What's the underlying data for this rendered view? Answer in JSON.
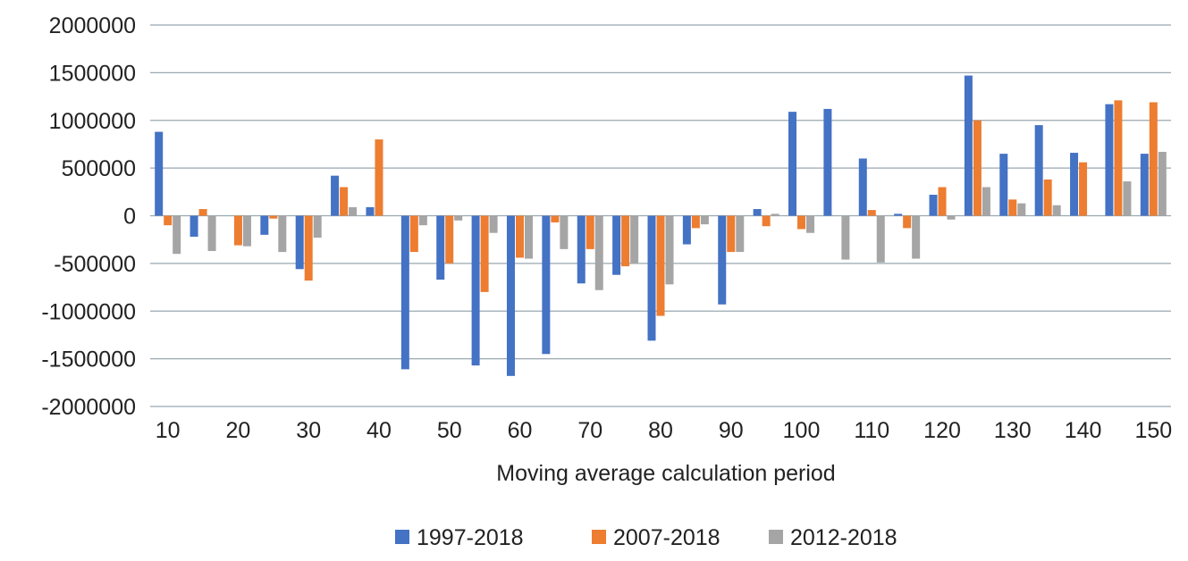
{
  "chart_data": {
    "type": "bar",
    "title": "",
    "xlabel": "Moving average calculation period",
    "ylabel": "",
    "ylim": [
      -2000000,
      2000000
    ],
    "yticks": [
      2000000,
      1500000,
      1000000,
      500000,
      0,
      -500000,
      -1000000,
      -1500000,
      -2000000
    ],
    "ytick_labels": [
      "2000000",
      "1500000",
      "1000000",
      "500000",
      "0",
      "-500000",
      "-1000000",
      "-1500000",
      "-2000000"
    ],
    "categories": [
      10,
      15,
      20,
      25,
      30,
      35,
      40,
      45,
      50,
      55,
      60,
      65,
      70,
      75,
      80,
      85,
      90,
      95,
      100,
      105,
      110,
      115,
      120,
      125,
      130,
      135,
      140,
      145,
      150
    ],
    "xtick_labels": [
      "10",
      "20",
      "30",
      "40",
      "50",
      "60",
      "70",
      "80",
      "90",
      "100",
      "110",
      "120",
      "130",
      "140",
      "150"
    ],
    "grid": true,
    "legend_position": "bottom",
    "series": [
      {
        "name": "1997-2018",
        "color": "#4472c4",
        "values": [
          880000,
          -220000,
          0,
          -200000,
          -560000,
          420000,
          90000,
          -1610000,
          -670000,
          -1570000,
          -1680000,
          -1450000,
          -710000,
          -620000,
          -1310000,
          -300000,
          -930000,
          70000,
          1090000,
          1120000,
          600000,
          20000,
          220000,
          1470000,
          650000,
          950000,
          660000,
          1170000,
          650000
        ]
      },
      {
        "name": "2007-2018",
        "color": "#ed7d31",
        "values": [
          -100000,
          70000,
          -310000,
          -30000,
          -680000,
          300000,
          800000,
          -380000,
          -500000,
          -800000,
          -440000,
          -70000,
          -350000,
          -530000,
          -1050000,
          -130000,
          -380000,
          -110000,
          -140000,
          0,
          60000,
          -130000,
          300000,
          1000000,
          170000,
          380000,
          560000,
          1210000,
          1190000
        ]
      },
      {
        "name": "2012-2018",
        "color": "#a5a5a5",
        "values": [
          -400000,
          -370000,
          -320000,
          -380000,
          -230000,
          90000,
          0,
          -100000,
          -50000,
          -180000,
          -450000,
          -350000,
          -780000,
          -500000,
          -720000,
          -90000,
          -380000,
          20000,
          -180000,
          -460000,
          -490000,
          -450000,
          -40000,
          300000,
          130000,
          110000,
          0,
          360000,
          670000
        ]
      }
    ]
  }
}
